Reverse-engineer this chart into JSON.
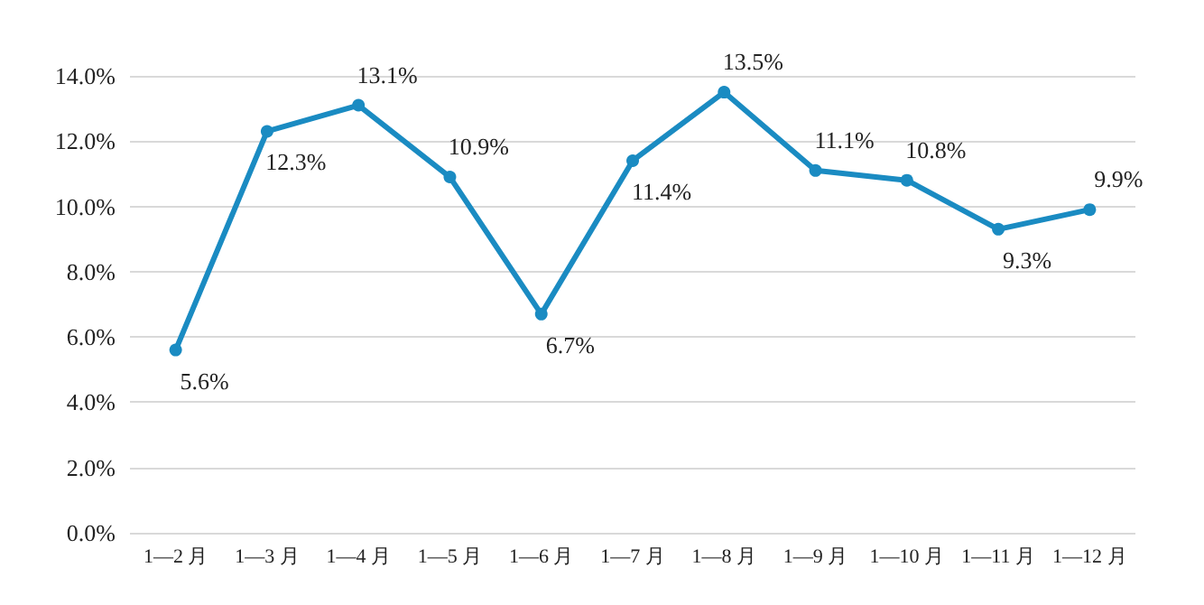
{
  "chart_data": {
    "type": "line",
    "categories": [
      "1—2 月",
      "1—3 月",
      "1—4 月",
      "1—5 月",
      "1—6 月",
      "1—7 月",
      "1—8 月",
      "1—9 月",
      "1—10 月",
      "1—11 月",
      "1—12 月"
    ],
    "series": [
      {
        "color": "#1a8bc2",
        "values": [
          5.6,
          12.3,
          13.1,
          10.9,
          6.7,
          11.4,
          13.5,
          11.1,
          10.8,
          9.3,
          9.9
        ],
        "value_labels": [
          "5.6%",
          "12.3%",
          "13.1%",
          "10.9%",
          "6.7%",
          "11.4%",
          "13.5%",
          "11.1%",
          "10.8%",
          "9.3%",
          "9.9%"
        ]
      }
    ],
    "ylim": [
      0,
      14
    ],
    "yticks": [
      {
        "value": 0,
        "label": "0.0%"
      },
      {
        "value": 2,
        "label": "2.0%"
      },
      {
        "value": 4,
        "label": "4.0%"
      },
      {
        "value": 6,
        "label": "6.0%"
      },
      {
        "value": 8,
        "label": "8.0%"
      },
      {
        "value": 10,
        "label": "10.0%"
      },
      {
        "value": 12,
        "label": "12.0%"
      },
      {
        "value": 14,
        "label": "14.0%"
      }
    ],
    "grid": "y",
    "marker": "circle",
    "line_style": "solid"
  }
}
